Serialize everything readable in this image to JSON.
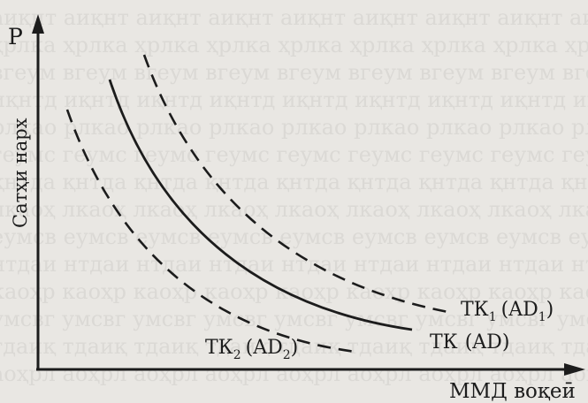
{
  "diagram": {
    "y_axis_letter": "P",
    "y_axis_label": "Сатҳи нарх",
    "x_axis_label": "ММД воқеӣ",
    "curves": [
      {
        "id": "tk1",
        "base": "ТК",
        "sub": "1",
        "paren_base": "AD",
        "paren_sub": "1",
        "style": "dashed"
      },
      {
        "id": "tk",
        "base": "ТК",
        "sub": "",
        "paren_base": "AD",
        "paren_sub": "",
        "style": "solid"
      },
      {
        "id": "tk2",
        "base": "ТК",
        "sub": "2",
        "paren_base": "AD",
        "paren_sub": "2",
        "style": "dashed"
      }
    ]
  },
  "colors": {
    "ink": "#1c1c1c",
    "paper": "#e9e7e3"
  }
}
